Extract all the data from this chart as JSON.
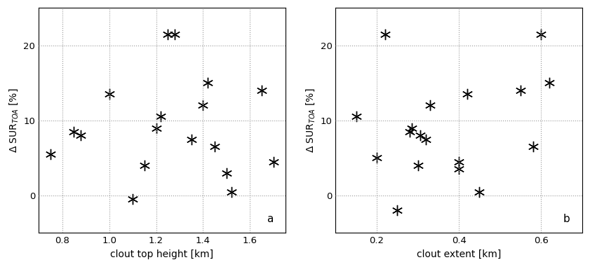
{
  "panel_a": {
    "x": [
      0.75,
      0.85,
      0.88,
      1.0,
      1.1,
      1.15,
      1.2,
      1.22,
      1.25,
      1.28,
      1.35,
      1.4,
      1.42,
      1.45,
      1.5,
      1.52,
      1.65,
      1.7
    ],
    "y": [
      5.5,
      8.5,
      8.0,
      13.5,
      -0.5,
      4.0,
      9.0,
      10.5,
      21.5,
      21.5,
      7.5,
      12.0,
      15.0,
      6.5,
      3.0,
      0.5,
      14.0,
      4.5
    ],
    "xlabel": "clout top height [km]",
    "ylabel": "$\\Delta$ SUR$_{TOA}$ [%]",
    "xlim": [
      0.7,
      1.75
    ],
    "ylim": [
      -5,
      25
    ],
    "xticks": [
      0.8,
      1.0,
      1.2,
      1.4,
      1.6
    ],
    "yticks": [
      0,
      10,
      20
    ],
    "label": "a"
  },
  "panel_b": {
    "x": [
      0.15,
      0.2,
      0.22,
      0.25,
      0.28,
      0.285,
      0.3,
      0.305,
      0.32,
      0.33,
      0.4,
      0.4,
      0.42,
      0.45,
      0.55,
      0.58,
      0.6,
      0.62
    ],
    "y": [
      10.5,
      5.0,
      21.5,
      -2.0,
      8.5,
      9.0,
      4.0,
      8.0,
      7.5,
      12.0,
      4.5,
      3.5,
      13.5,
      0.5,
      14.0,
      6.5,
      21.5,
      15.0
    ],
    "xlabel": "clout extent [km]",
    "ylabel": "$\\Delta$ SUR$_{TOA}$ [%]",
    "xlim": [
      0.1,
      0.7
    ],
    "ylim": [
      -5,
      25
    ],
    "xticks": [
      0.2,
      0.4,
      0.6
    ],
    "yticks": [
      0,
      10,
      20
    ],
    "label": "b"
  },
  "markersize": 11,
  "marker_color": "black",
  "grid_color": "#999999",
  "grid_style": ":",
  "background": "white",
  "figure_width": 8.41,
  "figure_height": 3.81,
  "dpi": 100,
  "font_size": 10,
  "tick_label_size": 9.5,
  "label_font_size": 11
}
